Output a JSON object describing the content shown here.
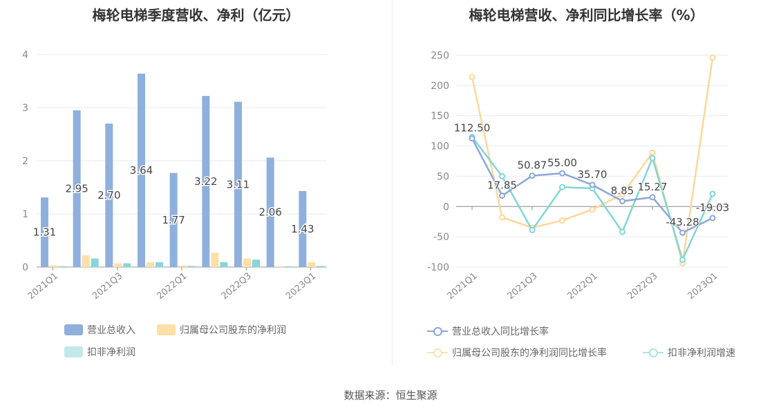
{
  "source": "数据来源：恒生聚源",
  "chart_data": [
    {
      "type": "bar",
      "title": "梅轮电梯季度营收、净利（亿元）",
      "categories": [
        "2021Q1",
        "2021Q2",
        "2021Q3",
        "2021Q4",
        "2022Q1",
        "2022Q2",
        "2022Q3",
        "2022Q4",
        "2023Q1"
      ],
      "x_tick_labels": [
        "2021Q1",
        "2021Q3",
        "2022Q1",
        "2022Q3",
        "2023Q1"
      ],
      "ylim": [
        0,
        4
      ],
      "yticks": [
        0,
        1,
        2,
        3,
        4
      ],
      "grid": true,
      "legend": "bottom",
      "series": [
        {
          "name": "营业总收入",
          "color": "#8fb0dc",
          "values": [
            1.31,
            2.95,
            2.7,
            3.64,
            1.77,
            3.22,
            3.11,
            2.06,
            1.43
          ],
          "labels": [
            "1.31",
            "2.95",
            "2.70",
            "3.64",
            "1.77",
            "3.22",
            "3.11",
            "2.06",
            "1.43"
          ]
        },
        {
          "name": "归属母公司股东的净利润",
          "color": "#fddfa8",
          "values": [
            0.03,
            0.22,
            0.07,
            0.09,
            0.03,
            0.27,
            0.16,
            0.005,
            0.09
          ]
        },
        {
          "name": "扣非净利润",
          "color": "#87d6d9",
          "values": [
            0.01,
            0.16,
            0.07,
            0.09,
            0.02,
            0.09,
            0.14,
            0.005,
            0.02
          ]
        }
      ]
    },
    {
      "type": "line",
      "title": "梅轮电梯营收、净利同比增长率（%）",
      "categories": [
        "2021Q1",
        "2021Q2",
        "2021Q3",
        "2021Q4",
        "2022Q1",
        "2022Q2",
        "2022Q3",
        "2022Q4",
        "2023Q1"
      ],
      "x_tick_labels": [
        "2021Q1",
        "2021Q3",
        "2022Q1",
        "2022Q3",
        "2023Q1"
      ],
      "ylim": [
        -100,
        250
      ],
      "yticks": [
        -100,
        -50,
        0,
        50,
        100,
        150,
        200,
        250
      ],
      "grid": true,
      "legend": "bottom",
      "series": [
        {
          "name": "营业总收入同比增长率",
          "color": "#8aa7d9",
          "values": [
            112.5,
            17.85,
            50.87,
            55.0,
            35.7,
            8.85,
            15.27,
            -43.28,
            -19.03
          ],
          "labels": [
            "112.50",
            "17.85",
            "50.87",
            "55.00",
            "35.70",
            "8.85",
            "15.27",
            "-43.28",
            "-19.03"
          ]
        },
        {
          "name": "归属母公司股东的净利润同比增长率",
          "color": "#fdd79a",
          "values": [
            214,
            -18,
            -35,
            -23,
            -5,
            20,
            89,
            -94,
            246
          ]
        },
        {
          "name": "扣非净利润增速",
          "color": "#7fd6d6",
          "values": [
            115,
            50,
            -39,
            32,
            30,
            -42,
            80,
            -88,
            21
          ]
        }
      ]
    }
  ]
}
